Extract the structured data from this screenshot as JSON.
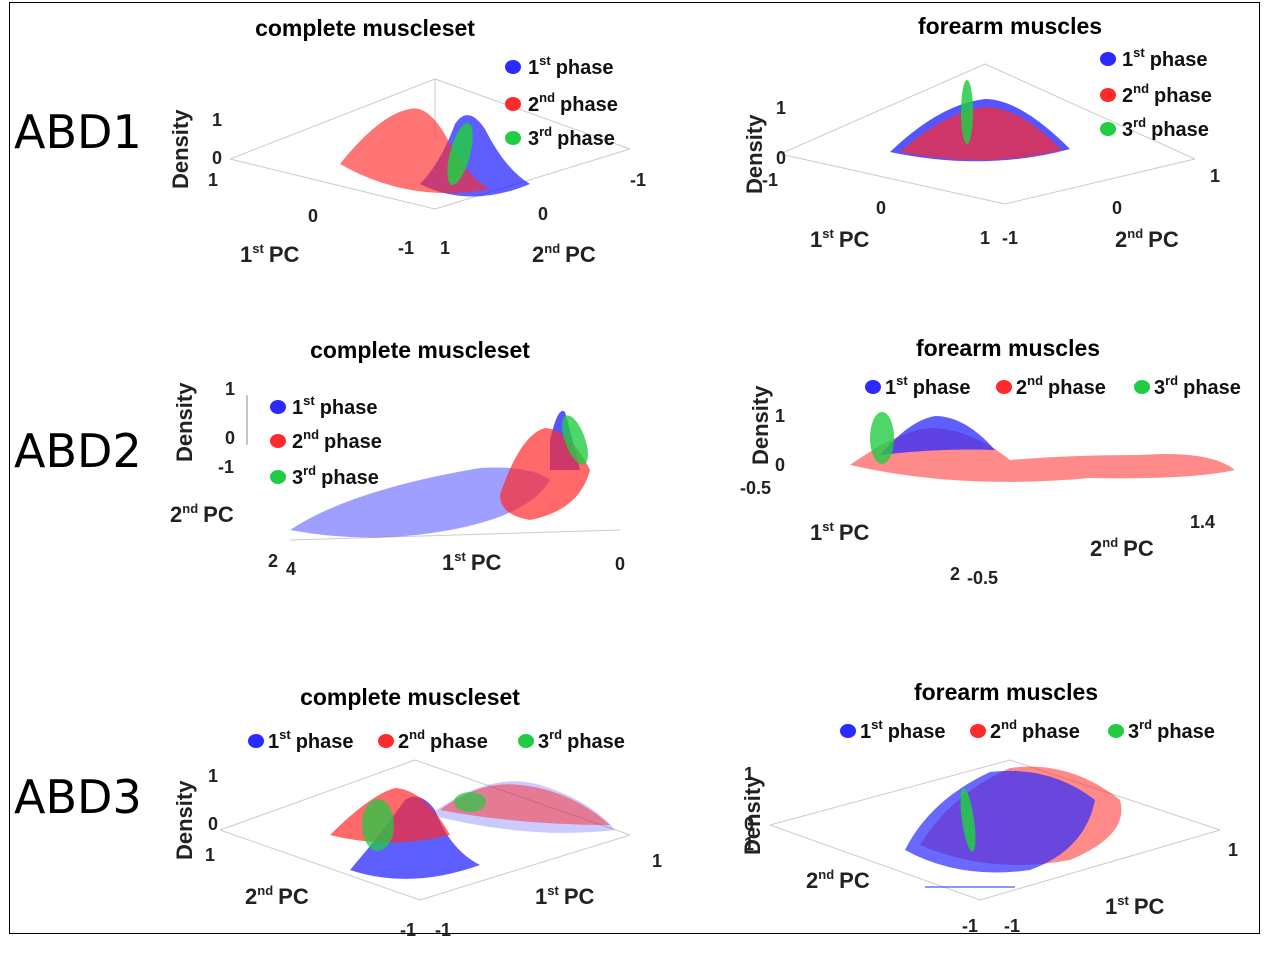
{
  "row_labels": [
    "ABD1",
    "ABD2",
    "ABD3"
  ],
  "legend_markers": {
    "p1": "1",
    "p2": "2",
    "p3": "3",
    "sup1": "st",
    "sup2": "nd",
    "sup3": "rd",
    "phase": "phase"
  },
  "pc_markers": {
    "pc1": "1",
    "pc2": "2",
    "sup1": "st",
    "sup2": "nd",
    "pc": "PC"
  },
  "colors": {
    "phase1": "#2a2aff",
    "phase2": "#ff2a2a",
    "phase3": "#22cc44"
  },
  "chart_data": [
    {
      "type": "surface",
      "title": "complete muscleset",
      "zlabel": "Density",
      "z_ticks": [
        "1",
        "0"
      ],
      "x_ticks": [
        "1",
        "0",
        "-1"
      ],
      "y_ticks": [
        "1",
        "0",
        "-1"
      ],
      "legend_layout": "vertical",
      "series": [
        {
          "name": "1st phase",
          "color": "#2a2aff",
          "peak_density": 0.9,
          "peak_x": 0.2,
          "peak_y": -0.2
        },
        {
          "name": "2nd phase",
          "color": "#ff2a2a",
          "peak_density": 0.95,
          "peak_x": 0.4,
          "peak_y": 0.1
        },
        {
          "name": "3rd phase",
          "color": "#22cc44",
          "peak_density": 0.9,
          "peak_x": 0.0,
          "peak_y": -0.3
        }
      ]
    },
    {
      "type": "surface",
      "title": "forearm muscles",
      "zlabel": "Density",
      "z_ticks": [
        "1",
        "0"
      ],
      "x_ticks": [
        "-1",
        "0",
        "1"
      ],
      "y_ticks": [
        "-1",
        "0",
        "1"
      ],
      "legend_layout": "vertical",
      "series": [
        {
          "name": "1st phase",
          "color": "#2a2aff",
          "peak_density": 1.0,
          "peak_x": 0.0,
          "peak_y": 0.0
        },
        {
          "name": "2nd phase",
          "color": "#ff2a2a",
          "peak_density": 0.9,
          "peak_x": 0.0,
          "peak_y": 0.0
        },
        {
          "name": "3rd phase",
          "color": "#22cc44",
          "peak_density": 1.0,
          "peak_x": -0.8,
          "peak_y": 0.3
        }
      ]
    },
    {
      "type": "surface",
      "title": "complete muscleset",
      "zlabel": "Density",
      "z_ticks": [
        "1",
        "0",
        "-1"
      ],
      "x_ticks": [
        "4",
        "0"
      ],
      "y_ticks": [
        "2"
      ],
      "legend_layout": "vertical",
      "series": [
        {
          "name": "1st phase",
          "color": "#2a2aff",
          "peak_density": 1.0,
          "peak_x": 0.3,
          "peak_y": 0.5
        },
        {
          "name": "2nd phase",
          "color": "#ff2a2a",
          "peak_density": 0.8,
          "peak_x": 0.6,
          "peak_y": 0.6
        },
        {
          "name": "3rd phase",
          "color": "#22cc44",
          "peak_density": 0.9,
          "peak_x": 0.2,
          "peak_y": 0.4
        }
      ]
    },
    {
      "type": "surface",
      "title": "forearm muscles",
      "zlabel": "Density",
      "z_ticks": [
        "1",
        "0",
        "-0.5"
      ],
      "x_ticks": [
        "2"
      ],
      "y_ticks": [
        "-0.5",
        "1.4"
      ],
      "legend_layout": "horizontal",
      "series": [
        {
          "name": "1st phase",
          "color": "#2a2aff",
          "peak_density": 1.0,
          "peak_x": 1.0,
          "peak_y": 0.2
        },
        {
          "name": "2nd phase",
          "color": "#ff2a2a",
          "peak_density": 0.7,
          "peak_x": 1.0,
          "peak_y": 0.5
        },
        {
          "name": "3rd phase",
          "color": "#22cc44",
          "peak_density": 0.9,
          "peak_x": 1.6,
          "peak_y": 0.0
        }
      ]
    },
    {
      "type": "surface",
      "title": "complete muscleset",
      "zlabel": "Density",
      "z_ticks": [
        "1",
        "0"
      ],
      "x_ticks": [
        "-1",
        "1"
      ],
      "y_ticks": [
        "1",
        "-1"
      ],
      "legend_layout": "horizontal",
      "series": [
        {
          "name": "1st phase",
          "color": "#2a2aff",
          "peak_density": 0.8,
          "peak_x": 0.0,
          "peak_y": 0.0
        },
        {
          "name": "2nd phase",
          "color": "#ff2a2a",
          "peak_density": 1.0,
          "peak_x": 0.2,
          "peak_y": 0.3
        },
        {
          "name": "3rd phase",
          "color": "#22cc44",
          "peak_density": 0.7,
          "peak_x": 0.5,
          "peak_y": -0.3
        }
      ]
    },
    {
      "type": "surface",
      "title": "forearm muscles",
      "zlabel": "Density",
      "z_ticks": [
        "1",
        "0"
      ],
      "x_ticks": [
        "-1",
        "1"
      ],
      "y_ticks": [
        "1",
        "-1"
      ],
      "legend_layout": "horizontal",
      "series": [
        {
          "name": "1st phase",
          "color": "#2a2aff",
          "peak_density": 1.0,
          "peak_x": 0.1,
          "peak_y": 0.1
        },
        {
          "name": "2nd phase",
          "color": "#ff2a2a",
          "peak_density": 1.0,
          "peak_x": 0.3,
          "peak_y": 0.3
        },
        {
          "name": "3rd phase",
          "color": "#22cc44",
          "peak_density": 0.6,
          "peak_x": -0.6,
          "peak_y": 0.0
        }
      ]
    }
  ]
}
